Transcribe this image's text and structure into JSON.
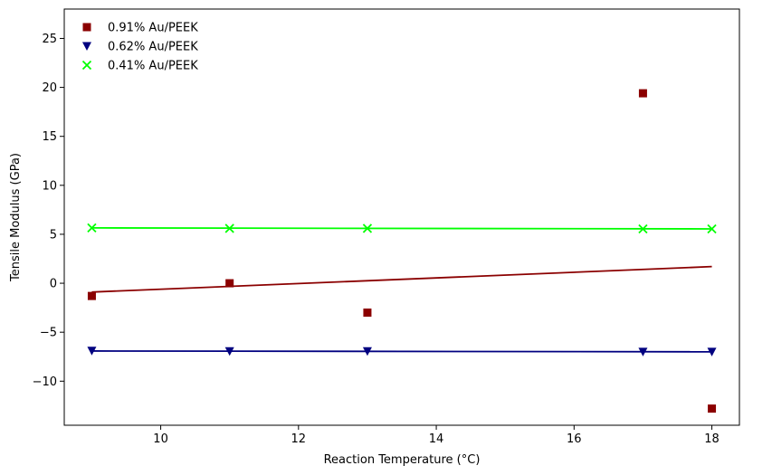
{
  "chart_data": {
    "type": "scatter",
    "title": "",
    "xlabel": "Reaction Temperature (°C)",
    "ylabel": "Tensile Modulus (GPa)",
    "xlim": [
      8.6,
      18.4
    ],
    "ylim": [
      -14.5,
      28
    ],
    "xticks": [
      10,
      12,
      14,
      16,
      18
    ],
    "yticks": [
      -10,
      -5,
      0,
      5,
      10,
      15,
      20,
      25
    ],
    "grid": false,
    "legend_position": "top-left",
    "series": [
      {
        "name": "0.91% Au/PEEK",
        "marker": "square",
        "color": "#8b0000",
        "x": [
          9,
          11,
          13,
          17,
          18
        ],
        "y": [
          -1.3,
          0.0,
          -3.0,
          19.4,
          -12.8
        ],
        "fit": [
          [
            9,
            -0.9
          ],
          [
            18,
            1.7
          ]
        ]
      },
      {
        "name": "0.62% Au/PEEK",
        "marker": "triangle-down",
        "color": "#000080",
        "x": [
          9,
          11,
          13,
          17,
          18
        ],
        "y": [
          -6.9,
          -6.95,
          -6.95,
          -7.0,
          -7.0
        ],
        "fit": [
          [
            9,
            -6.92
          ],
          [
            18,
            -7.0
          ]
        ]
      },
      {
        "name": "0.41% Au/PEEK",
        "marker": "x",
        "color": "#00ff00",
        "x": [
          9,
          11,
          13,
          17,
          18
        ],
        "y": [
          5.65,
          5.6,
          5.6,
          5.55,
          5.55
        ],
        "fit": [
          [
            9,
            5.65
          ],
          [
            18,
            5.55
          ]
        ]
      }
    ]
  }
}
